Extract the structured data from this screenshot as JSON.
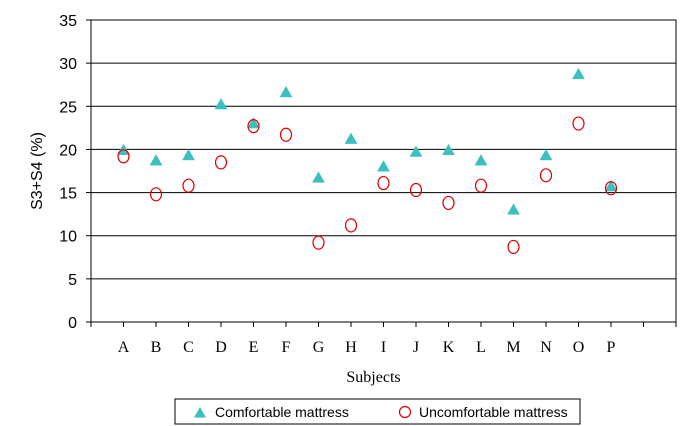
{
  "chart_data": {
    "type": "scatter",
    "xlabel": "Subjects",
    "ylabel": "S3+S4 (%)",
    "ylim": [
      0,
      35
    ],
    "yticks": [
      0,
      5,
      10,
      15,
      20,
      25,
      30,
      35
    ],
    "grid": "horizontal",
    "legend_position": "bottom",
    "categories": [
      "A",
      "B",
      "C",
      "D",
      "E",
      "F",
      "G",
      "H",
      "I",
      "J",
      "K",
      "L",
      "M",
      "N",
      "O",
      "P"
    ],
    "series": [
      {
        "name": "Comfortable mattress",
        "marker": "triangle",
        "color": "#3cbfbf",
        "values": [
          19.9,
          18.7,
          19.3,
          25.2,
          23.0,
          26.6,
          16.7,
          21.2,
          18.0,
          19.7,
          19.9,
          18.7,
          13.0,
          19.3,
          28.7,
          15.7
        ]
      },
      {
        "name": "Uncomfortable mattress",
        "marker": "circle",
        "color": "#e00000",
        "values": [
          19.2,
          14.8,
          15.8,
          18.5,
          22.7,
          21.7,
          9.2,
          11.2,
          16.1,
          15.3,
          13.8,
          15.8,
          8.7,
          17.0,
          23.0,
          15.5
        ]
      }
    ]
  }
}
